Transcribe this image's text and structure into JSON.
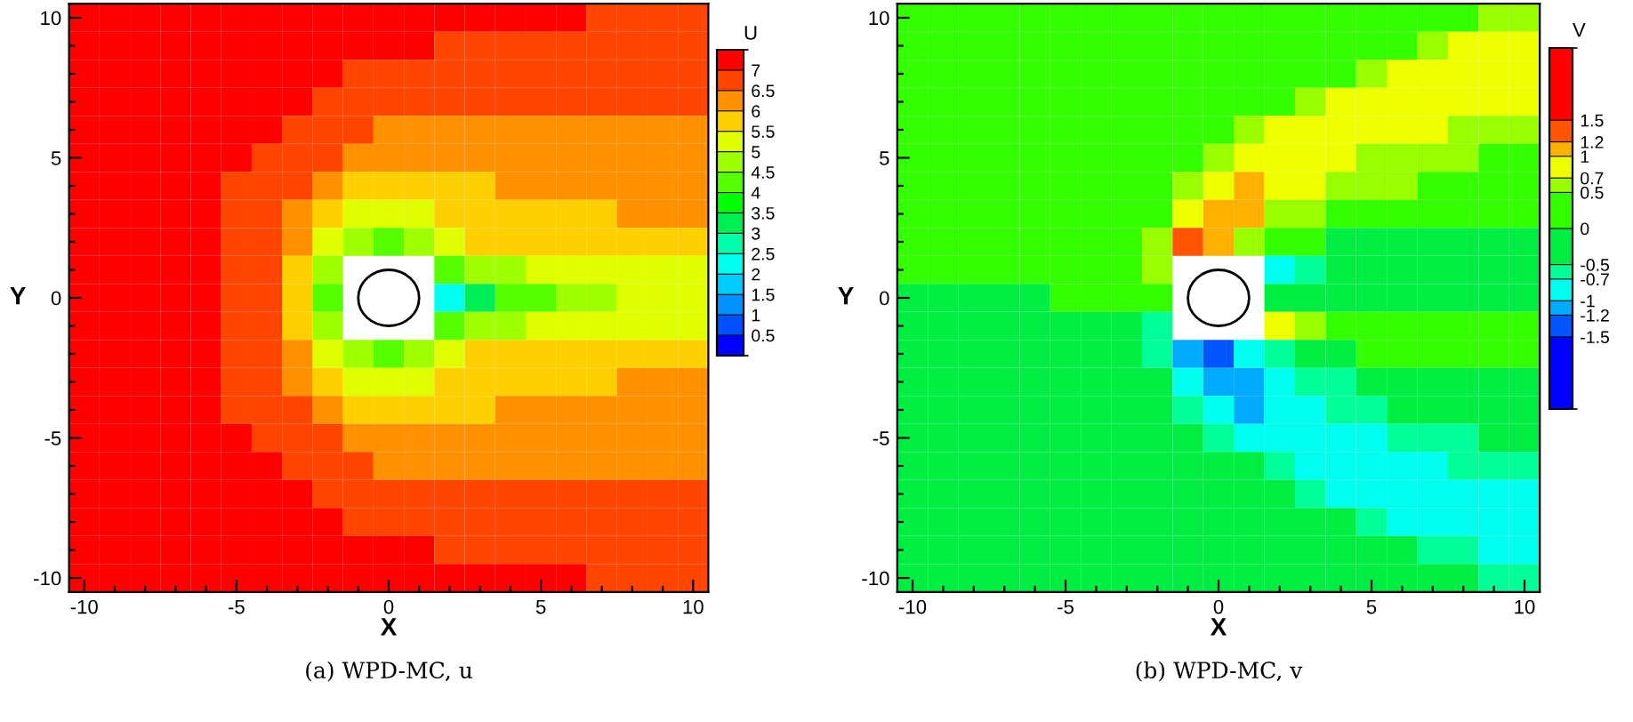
{
  "chart_data": [
    {
      "type": "heatmap",
      "title": "(a) WPD-MC, u",
      "xlabel": "X",
      "ylabel": "Y",
      "clabel": "U",
      "categories": [
        "-10",
        null,
        null,
        null,
        null,
        "-5",
        null,
        null,
        null,
        null,
        "0",
        null,
        null,
        null,
        null,
        "5",
        null,
        null,
        null,
        null,
        "10"
      ],
      "y_categories": [
        "10",
        null,
        null,
        null,
        null,
        "5",
        null,
        null,
        null,
        null,
        "0",
        null,
        null,
        null,
        null,
        "-5",
        null,
        null,
        null,
        null,
        "-10"
      ],
      "clim": [
        0,
        7.5
      ],
      "cticks": [
        0.5,
        1,
        1.5,
        2,
        2.5,
        3,
        3.5,
        4,
        4.5,
        5,
        5.5,
        6,
        6.5,
        7
      ],
      "colors": [
        "#0000ff",
        "#0050ff",
        "#0090ff",
        "#00ccff",
        "#00ffee",
        "#00ffaa",
        "#00ee55",
        "#00ff00",
        "#55ff00",
        "#a0ff00",
        "#e0ff00",
        "#ffd000",
        "#ff9000",
        "#ff4500",
        "#ff0000"
      ],
      "cells": [
        [
          7.2,
          7.2,
          7.2,
          7.2,
          7.2,
          7.2,
          7.2,
          7.2,
          7.2,
          7.2,
          7.2,
          7.2,
          7.2,
          7.2,
          7.2,
          7.2,
          7.2,
          6.7,
          6.7,
          6.7,
          6.7
        ],
        [
          7.2,
          7.2,
          7.2,
          7.2,
          7.2,
          7.2,
          7.2,
          7.2,
          7.2,
          7.2,
          7.2,
          7.2,
          6.7,
          6.7,
          6.7,
          6.7,
          6.7,
          6.7,
          6.7,
          6.7,
          6.7
        ],
        [
          7.2,
          7.2,
          7.2,
          7.2,
          7.2,
          7.2,
          7.2,
          7.2,
          7.2,
          6.7,
          6.7,
          6.7,
          6.7,
          6.7,
          6.7,
          6.7,
          6.7,
          6.7,
          6.7,
          6.7,
          6.7
        ],
        [
          7.2,
          7.2,
          7.2,
          7.2,
          7.2,
          7.2,
          7.2,
          7.2,
          6.7,
          6.7,
          6.7,
          6.7,
          6.7,
          6.7,
          6.7,
          6.7,
          6.7,
          6.7,
          6.7,
          6.7,
          6.7
        ],
        [
          7.2,
          7.2,
          7.2,
          7.2,
          7.2,
          7.2,
          7.2,
          6.7,
          6.7,
          6.7,
          6.2,
          6.2,
          6.2,
          6.2,
          6.2,
          6.2,
          6.2,
          6.2,
          6.2,
          6.2,
          6.2
        ],
        [
          7.2,
          7.2,
          7.2,
          7.2,
          7.2,
          7.2,
          6.7,
          6.7,
          6.7,
          6.2,
          6.2,
          6.2,
          6.2,
          6.2,
          6.2,
          6.2,
          6.2,
          6.2,
          6.2,
          6.2,
          6.2
        ],
        [
          7.2,
          7.2,
          7.2,
          7.2,
          7.2,
          6.7,
          6.7,
          6.7,
          6.2,
          5.8,
          5.8,
          5.8,
          5.8,
          5.8,
          6.2,
          6.2,
          6.2,
          6.2,
          6.2,
          6.2,
          6.2
        ],
        [
          7.2,
          7.2,
          7.2,
          7.2,
          7.2,
          6.7,
          6.7,
          6.2,
          5.8,
          5.2,
          5.2,
          5.2,
          5.8,
          5.8,
          5.8,
          5.8,
          5.8,
          5.8,
          6.2,
          6.2,
          6.2
        ],
        [
          7.2,
          7.2,
          7.2,
          7.2,
          7.2,
          6.7,
          6.7,
          6.2,
          5.2,
          4.7,
          4.2,
          4.7,
          5.2,
          5.8,
          5.8,
          5.8,
          5.8,
          5.8,
          5.8,
          5.8,
          5.8
        ],
        [
          7.2,
          7.2,
          7.2,
          7.2,
          7.2,
          6.7,
          6.7,
          5.8,
          4.7,
          null,
          null,
          null,
          4.2,
          4.7,
          4.7,
          5.2,
          5.2,
          5.2,
          5.2,
          5.2,
          5.2
        ],
        [
          7.2,
          7.2,
          7.2,
          7.2,
          7.2,
          6.7,
          6.7,
          5.8,
          4.2,
          null,
          null,
          null,
          2.2,
          3.2,
          4.2,
          4.2,
          4.7,
          4.7,
          5.2,
          5.2,
          5.2
        ],
        [
          7.2,
          7.2,
          7.2,
          7.2,
          7.2,
          6.7,
          6.7,
          5.8,
          4.7,
          null,
          null,
          null,
          4.2,
          4.7,
          4.7,
          5.2,
          5.2,
          5.2,
          5.2,
          5.2,
          5.2
        ],
        [
          7.2,
          7.2,
          7.2,
          7.2,
          7.2,
          6.7,
          6.7,
          6.2,
          5.2,
          4.7,
          4.2,
          4.7,
          5.2,
          5.8,
          5.8,
          5.8,
          5.8,
          5.8,
          5.8,
          5.8,
          5.8
        ],
        [
          7.2,
          7.2,
          7.2,
          7.2,
          7.2,
          6.7,
          6.7,
          6.2,
          5.8,
          5.2,
          5.2,
          5.2,
          5.8,
          5.8,
          5.8,
          5.8,
          5.8,
          5.8,
          6.2,
          6.2,
          6.2
        ],
        [
          7.2,
          7.2,
          7.2,
          7.2,
          7.2,
          6.7,
          6.7,
          6.7,
          6.2,
          5.8,
          5.8,
          5.8,
          5.8,
          5.8,
          6.2,
          6.2,
          6.2,
          6.2,
          6.2,
          6.2,
          6.2
        ],
        [
          7.2,
          7.2,
          7.2,
          7.2,
          7.2,
          7.2,
          6.7,
          6.7,
          6.7,
          6.2,
          6.2,
          6.2,
          6.2,
          6.2,
          6.2,
          6.2,
          6.2,
          6.2,
          6.2,
          6.2,
          6.2
        ],
        [
          7.2,
          7.2,
          7.2,
          7.2,
          7.2,
          7.2,
          7.2,
          6.7,
          6.7,
          6.7,
          6.2,
          6.2,
          6.2,
          6.2,
          6.2,
          6.2,
          6.2,
          6.2,
          6.2,
          6.2,
          6.2
        ],
        [
          7.2,
          7.2,
          7.2,
          7.2,
          7.2,
          7.2,
          7.2,
          7.2,
          6.7,
          6.7,
          6.7,
          6.7,
          6.7,
          6.7,
          6.7,
          6.7,
          6.7,
          6.7,
          6.7,
          6.7,
          6.7
        ],
        [
          7.2,
          7.2,
          7.2,
          7.2,
          7.2,
          7.2,
          7.2,
          7.2,
          7.2,
          6.7,
          6.7,
          6.7,
          6.7,
          6.7,
          6.7,
          6.7,
          6.7,
          6.7,
          6.7,
          6.7,
          6.7
        ],
        [
          7.2,
          7.2,
          7.2,
          7.2,
          7.2,
          7.2,
          7.2,
          7.2,
          7.2,
          7.2,
          7.2,
          7.2,
          6.7,
          6.7,
          6.7,
          6.7,
          6.7,
          6.7,
          6.7,
          6.7,
          6.7
        ],
        [
          7.2,
          7.2,
          7.2,
          7.2,
          7.2,
          7.2,
          7.2,
          7.2,
          7.2,
          7.2,
          7.2,
          7.2,
          7.2,
          7.2,
          7.2,
          7.2,
          7.2,
          6.7,
          6.7,
          6.7,
          6.7
        ]
      ]
    },
    {
      "type": "heatmap",
      "title": "(b) WPD-MC, v",
      "xlabel": "X",
      "ylabel": "Y",
      "clabel": "V",
      "categories": [
        "-10",
        null,
        null,
        null,
        null,
        "-5",
        null,
        null,
        null,
        null,
        "0",
        null,
        null,
        null,
        null,
        "5",
        null,
        null,
        null,
        null,
        "10"
      ],
      "y_categories": [
        "10",
        null,
        null,
        null,
        null,
        "5",
        null,
        null,
        null,
        null,
        "0",
        null,
        null,
        null,
        null,
        "-5",
        null,
        null,
        null,
        null,
        "-10"
      ],
      "clim": [
        -2.5,
        2.5
      ],
      "cticks": [
        -1.5,
        -1.2,
        -1,
        -0.7,
        -0.5,
        0,
        0.5,
        0.7,
        1,
        1.2,
        1.5
      ],
      "colors": [
        "#0000ff",
        "#0055ff",
        "#00aaff",
        "#00ffee",
        "#00ff99",
        "#00ee44",
        "#33ff00",
        "#99ff00",
        "#eeff00",
        "#ffb000",
        "#ff5500",
        "#ff0000"
      ],
      "cells": [
        [
          0.2,
          0.2,
          0.2,
          0.2,
          0.2,
          0.2,
          0.2,
          0.2,
          0.2,
          0.2,
          0.2,
          0.2,
          0.2,
          0.2,
          0.2,
          0.2,
          0.2,
          0.2,
          0.2,
          0.6,
          0.6
        ],
        [
          0.2,
          0.2,
          0.2,
          0.2,
          0.2,
          0.2,
          0.2,
          0.2,
          0.2,
          0.2,
          0.2,
          0.2,
          0.2,
          0.2,
          0.2,
          0.2,
          0.2,
          0.6,
          0.8,
          0.8,
          0.8
        ],
        [
          0.2,
          0.2,
          0.2,
          0.2,
          0.2,
          0.2,
          0.2,
          0.2,
          0.2,
          0.2,
          0.2,
          0.2,
          0.2,
          0.2,
          0.2,
          0.6,
          0.8,
          0.8,
          0.8,
          0.8,
          0.8
        ],
        [
          0.2,
          0.2,
          0.2,
          0.2,
          0.2,
          0.2,
          0.2,
          0.2,
          0.2,
          0.2,
          0.2,
          0.2,
          0.2,
          0.6,
          0.8,
          0.8,
          0.8,
          0.8,
          0.8,
          0.8,
          0.8
        ],
        [
          0.2,
          0.2,
          0.2,
          0.2,
          0.2,
          0.2,
          0.2,
          0.2,
          0.2,
          0.2,
          0.2,
          0.6,
          0.8,
          0.8,
          0.8,
          0.8,
          0.8,
          0.8,
          0.6,
          0.6,
          0.6
        ],
        [
          0.2,
          0.2,
          0.2,
          0.2,
          0.2,
          0.2,
          0.2,
          0.2,
          0.2,
          0.2,
          0.6,
          0.8,
          0.8,
          0.8,
          0.8,
          0.6,
          0.6,
          0.6,
          0.6,
          0.2,
          0.2
        ],
        [
          0.2,
          0.2,
          0.2,
          0.2,
          0.2,
          0.2,
          0.2,
          0.2,
          0.2,
          0.6,
          0.8,
          1.1,
          0.8,
          0.8,
          0.6,
          0.6,
          0.6,
          0.2,
          0.2,
          0.2,
          0.2
        ],
        [
          0.2,
          0.2,
          0.2,
          0.2,
          0.2,
          0.2,
          0.2,
          0.2,
          0.2,
          0.8,
          1.1,
          1.1,
          0.6,
          0.6,
          0.2,
          0.2,
          0.2,
          0.2,
          0.2,
          0.2,
          0.2
        ],
        [
          0.2,
          0.2,
          0.2,
          0.2,
          0.2,
          0.2,
          0.2,
          0.2,
          0.6,
          1.3,
          1.1,
          0.6,
          0.2,
          0.2,
          -0.2,
          -0.2,
          -0.2,
          -0.2,
          -0.2,
          -0.2,
          -0.2
        ],
        [
          0.2,
          0.2,
          0.2,
          0.2,
          0.2,
          0.2,
          0.2,
          0.2,
          0.6,
          null,
          null,
          null,
          -0.8,
          -0.6,
          -0.2,
          -0.2,
          -0.2,
          -0.2,
          -0.2,
          -0.2,
          -0.2
        ],
        [
          -0.2,
          -0.2,
          -0.2,
          -0.2,
          -0.2,
          0.2,
          0.2,
          0.2,
          0.2,
          null,
          null,
          null,
          -0.2,
          -0.2,
          -0.2,
          -0.2,
          -0.2,
          -0.2,
          -0.2,
          -0.2,
          -0.2
        ],
        [
          -0.2,
          -0.2,
          -0.2,
          -0.2,
          -0.2,
          -0.2,
          -0.2,
          -0.2,
          -0.6,
          null,
          null,
          null,
          0.8,
          0.6,
          0.2,
          0.2,
          0.2,
          0.2,
          0.2,
          0.2,
          0.2
        ],
        [
          -0.2,
          -0.2,
          -0.2,
          -0.2,
          -0.2,
          -0.2,
          -0.2,
          -0.2,
          -0.6,
          -1.1,
          -1.3,
          -0.8,
          -0.6,
          -0.2,
          -0.2,
          0.2,
          0.2,
          0.2,
          0.2,
          0.2,
          0.2
        ],
        [
          -0.2,
          -0.2,
          -0.2,
          -0.2,
          -0.2,
          -0.2,
          -0.2,
          -0.2,
          -0.2,
          -0.8,
          -1.1,
          -1.1,
          -0.8,
          -0.6,
          -0.6,
          -0.2,
          -0.2,
          -0.2,
          -0.2,
          -0.2,
          -0.2
        ],
        [
          -0.2,
          -0.2,
          -0.2,
          -0.2,
          -0.2,
          -0.2,
          -0.2,
          -0.2,
          -0.2,
          -0.6,
          -0.8,
          -1.1,
          -0.8,
          -0.8,
          -0.6,
          -0.6,
          -0.2,
          -0.2,
          -0.2,
          -0.2,
          -0.2
        ],
        [
          -0.2,
          -0.2,
          -0.2,
          -0.2,
          -0.2,
          -0.2,
          -0.2,
          -0.2,
          -0.2,
          -0.2,
          -0.6,
          -0.8,
          -0.8,
          -0.8,
          -0.8,
          -0.8,
          -0.6,
          -0.6,
          -0.6,
          -0.2,
          -0.2
        ],
        [
          -0.2,
          -0.2,
          -0.2,
          -0.2,
          -0.2,
          -0.2,
          -0.2,
          -0.2,
          -0.2,
          -0.2,
          -0.2,
          -0.2,
          -0.6,
          -0.8,
          -0.8,
          -0.8,
          -0.8,
          -0.8,
          -0.6,
          -0.6,
          -0.6
        ],
        [
          -0.2,
          -0.2,
          -0.2,
          -0.2,
          -0.2,
          -0.2,
          -0.2,
          -0.2,
          -0.2,
          -0.2,
          -0.2,
          -0.2,
          -0.2,
          -0.6,
          -0.8,
          -0.8,
          -0.8,
          -0.8,
          -0.8,
          -0.8,
          -0.8
        ],
        [
          -0.2,
          -0.2,
          -0.2,
          -0.2,
          -0.2,
          -0.2,
          -0.2,
          -0.2,
          -0.2,
          -0.2,
          -0.2,
          -0.2,
          -0.2,
          -0.2,
          -0.2,
          -0.6,
          -0.8,
          -0.8,
          -0.8,
          -0.8,
          -0.8
        ],
        [
          -0.2,
          -0.2,
          -0.2,
          -0.2,
          -0.2,
          -0.2,
          -0.2,
          -0.2,
          -0.2,
          -0.2,
          -0.2,
          -0.2,
          -0.2,
          -0.2,
          -0.2,
          -0.2,
          -0.2,
          -0.6,
          -0.6,
          -0.8,
          -0.8
        ],
        [
          -0.2,
          -0.2,
          -0.2,
          -0.2,
          -0.2,
          -0.2,
          -0.2,
          -0.2,
          -0.2,
          -0.2,
          -0.2,
          -0.2,
          -0.2,
          -0.2,
          -0.2,
          -0.2,
          -0.2,
          -0.2,
          -0.2,
          -0.6,
          -0.6
        ]
      ]
    }
  ]
}
